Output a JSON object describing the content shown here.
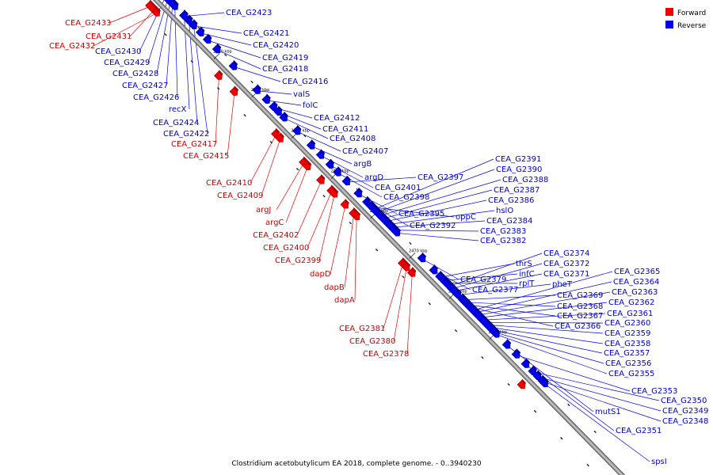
{
  "legend": [
    {
      "label": "Forward",
      "color": "#ee0000"
    },
    {
      "label": "Reverse",
      "color": "#0000ee"
    }
  ],
  "caption": "Clostridium acetobutylicum EA 2018, complete genome. - 0..3940230",
  "backbone_color": "#9a9a9a",
  "forward_color": "#ee0000",
  "reverse_color": "#0000ee",
  "ticks": [
    {
      "pos": 0.126,
      "label": "2520 kbp"
    },
    {
      "pos": 0.206,
      "label": "2510 kbp"
    },
    {
      "pos": 0.291,
      "label": "2500 kbp"
    },
    {
      "pos": 0.375,
      "label": "2490 kbp"
    },
    {
      "pos": 0.458,
      "label": "2480 kbp"
    },
    {
      "pos": 0.541,
      "label": "2470 kbp"
    },
    {
      "pos": 0.625,
      "label": "2460 kbp"
    },
    {
      "pos": 0.71,
      "label": "2450 kbp"
    }
  ],
  "forward_genes": [
    {
      "name": "CEA_G2433",
      "pos": 0.004
    },
    {
      "name": "CEA_G2431",
      "pos": 0.012
    },
    {
      "name": "CEA_G2432",
      "pos": 0.018
    },
    {
      "name": "CEA_G2417",
      "pos": 0.15
    },
    {
      "name": "CEA_G2415",
      "pos": 0.183
    },
    {
      "name": "CEA_G2410",
      "pos": 0.271
    },
    {
      "name": "CEA_G2409",
      "pos": 0.28
    },
    {
      "name": "argJ",
      "pos": 0.33
    },
    {
      "name": "argC",
      "pos": 0.338
    },
    {
      "name": "CEA_G2402",
      "pos": 0.367
    },
    {
      "name": "CEA_G2400",
      "pos": 0.389
    },
    {
      "name": "CEA_G2399",
      "pos": 0.395
    },
    {
      "name": "dapD",
      "pos": 0.418
    },
    {
      "name": "dapB",
      "pos": 0.436
    },
    {
      "name": "dapA",
      "pos": 0.442
    },
    {
      "name": "CEA_G2381",
      "pos": 0.54
    },
    {
      "name": "CEA_G2380",
      "pos": 0.548
    },
    {
      "name": "CEA_G2378",
      "pos": 0.56
    },
    {
      "name": "",
      "pos": 0.793
    }
  ],
  "reverse_genes": [
    {
      "name": "CEA_G2430",
      "pos": 0.01
    },
    {
      "name": "CEA_G2429",
      "pos": 0.015
    },
    {
      "name": "CEA_G2428",
      "pos": 0.02
    },
    {
      "name": "CEA_G2427",
      "pos": 0.025
    },
    {
      "name": "CEA_G2426",
      "pos": 0.03
    },
    {
      "name": "recX",
      "pos": 0.05
    },
    {
      "name": "CEA_G2424",
      "pos": 0.06
    },
    {
      "name": "CEA_G2422",
      "pos": 0.07
    },
    {
      "name": "CEA_G2423",
      "pos": 0.05
    },
    {
      "name": "CEA_G2421",
      "pos": 0.07
    },
    {
      "name": "CEA_G2420",
      "pos": 0.085
    },
    {
      "name": "CEA_G2419",
      "pos": 0.1
    },
    {
      "name": "CEA_G2418",
      "pos": 0.12
    },
    {
      "name": "CEA_G2416",
      "pos": 0.155
    },
    {
      "name": "valS",
      "pos": 0.205
    },
    {
      "name": "folC",
      "pos": 0.225
    },
    {
      "name": "CEA_G2412",
      "pos": 0.24
    },
    {
      "name": "CEA_G2411",
      "pos": 0.25
    },
    {
      "name": "CEA_G2408",
      "pos": 0.262
    },
    {
      "name": "CEA_G2407",
      "pos": 0.29
    },
    {
      "name": "argB",
      "pos": 0.32
    },
    {
      "name": "argD",
      "pos": 0.34
    },
    {
      "name": "CEA_G2401",
      "pos": 0.36
    },
    {
      "name": "CEA_G2398",
      "pos": 0.376
    },
    {
      "name": "CEA_G2397",
      "pos": 0.395
    },
    {
      "name": "CEA_G2395",
      "pos": 0.42
    },
    {
      "name": "CEA_G2392",
      "pos": 0.438
    },
    {
      "name": "oppC",
      "pos": 0.447
    },
    {
      "name": "CEA_G2391",
      "pos": 0.452
    },
    {
      "name": "CEA_G2390",
      "pos": 0.458
    },
    {
      "name": "CEA_G2388",
      "pos": 0.465
    },
    {
      "name": "CEA_G2387",
      "pos": 0.471
    },
    {
      "name": "CEA_G2386",
      "pos": 0.477
    },
    {
      "name": "hslO",
      "pos": 0.483
    },
    {
      "name": "CEA_G2384",
      "pos": 0.489
    },
    {
      "name": "CEA_G2383",
      "pos": 0.495
    },
    {
      "name": "CEA_G2382",
      "pos": 0.501
    },
    {
      "name": "CEA_G2379",
      "pos": 0.555
    },
    {
      "name": "CEA_G2377",
      "pos": 0.58
    },
    {
      "name": "thrS",
      "pos": 0.593
    },
    {
      "name": "infC",
      "pos": 0.6
    },
    {
      "name": "rplT",
      "pos": 0.605
    },
    {
      "name": "CEA_G2374",
      "pos": 0.612
    },
    {
      "name": "CEA_G2372",
      "pos": 0.617
    },
    {
      "name": "CEA_G2371",
      "pos": 0.622
    },
    {
      "name": "pheT",
      "pos": 0.63
    },
    {
      "name": "CEA_G2369",
      "pos": 0.64
    },
    {
      "name": "CEA_G2368",
      "pos": 0.645
    },
    {
      "name": "CEA_G2367",
      "pos": 0.65
    },
    {
      "name": "CEA_G2366",
      "pos": 0.655
    },
    {
      "name": "CEA_G2365",
      "pos": 0.662
    },
    {
      "name": "CEA_G2364",
      "pos": 0.667
    },
    {
      "name": "CEA_G2363",
      "pos": 0.672
    },
    {
      "name": "CEA_G2362",
      "pos": 0.677
    },
    {
      "name": "CEA_G2361",
      "pos": 0.682
    },
    {
      "name": "CEA_G2360",
      "pos": 0.687
    },
    {
      "name": "CEA_G2359",
      "pos": 0.692
    },
    {
      "name": "CEA_G2358",
      "pos": 0.697
    },
    {
      "name": "CEA_G2357",
      "pos": 0.702
    },
    {
      "name": "CEA_G2356",
      "pos": 0.707
    },
    {
      "name": "CEA_G2355",
      "pos": 0.712
    },
    {
      "name": "mutS1",
      "pos": 0.735
    },
    {
      "name": "CEA_G2353",
      "pos": 0.755
    },
    {
      "name": "CEA_G2351",
      "pos": 0.775
    },
    {
      "name": "CEA_G2350",
      "pos": 0.79
    },
    {
      "name": "CEA_G2349",
      "pos": 0.8
    },
    {
      "name": "CEA_G2348",
      "pos": 0.81
    },
    {
      "name": "spsI",
      "pos": 0.815
    }
  ]
}
